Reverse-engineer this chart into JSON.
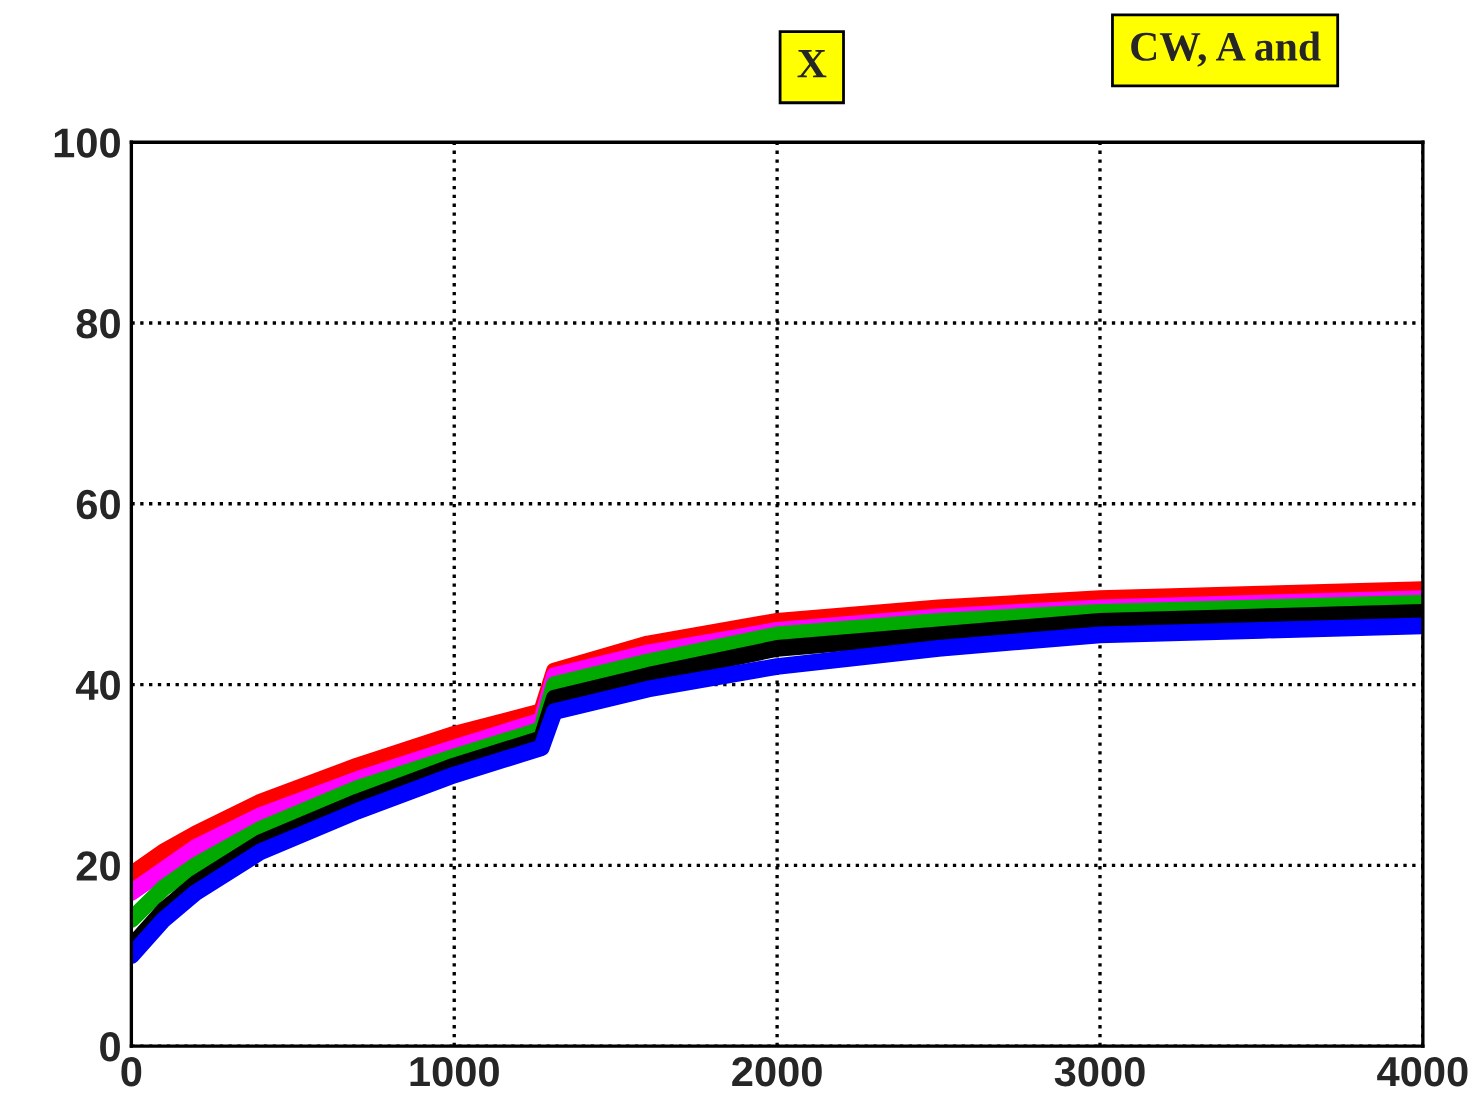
{
  "chart_data": {
    "type": "line",
    "annotations": [
      "X",
      "CW, A and"
    ],
    "x": [
      0,
      100,
      200,
      400,
      700,
      1000,
      1270,
      1310,
      1600,
      2000,
      2500,
      3000,
      3500,
      4000
    ],
    "series": [
      {
        "color": "#ff0000",
        "values": [
          19,
          21.5,
          23.5,
          27,
          31,
          34.5,
          37,
          41.5,
          44.5,
          47,
          48.5,
          49.5,
          50,
          50.5
        ]
      },
      {
        "color": "#ff00ff",
        "values": [
          17,
          19.5,
          22,
          25.5,
          29.5,
          33,
          36,
          41,
          43.5,
          46,
          47.5,
          48.5,
          49,
          49.5
        ]
      },
      {
        "color": "#00aa00",
        "values": [
          14,
          17.5,
          20,
          24,
          28.5,
          32,
          35,
          40,
          42.5,
          45.5,
          47,
          48,
          48.5,
          49
        ]
      },
      {
        "color": "#000000",
        "values": [
          11,
          15,
          18,
          22.5,
          27,
          31,
          34,
          38.5,
          41,
          44,
          45.5,
          47,
          47.5,
          48
        ]
      },
      {
        "color": "#0000ff",
        "values": [
          10,
          14,
          17,
          21.5,
          26,
          30,
          33,
          37,
          39.5,
          42,
          44,
          45.5,
          46,
          46.5
        ]
      }
    ],
    "xlim": [
      0,
      4000
    ],
    "xticks": [
      0,
      1000,
      2000,
      3000,
      4000
    ],
    "ylim": [
      0,
      100
    ],
    "yticks": [
      0,
      20,
      40,
      60,
      80,
      100
    ],
    "grid": true,
    "line_style": "solid",
    "marker": "none"
  }
}
